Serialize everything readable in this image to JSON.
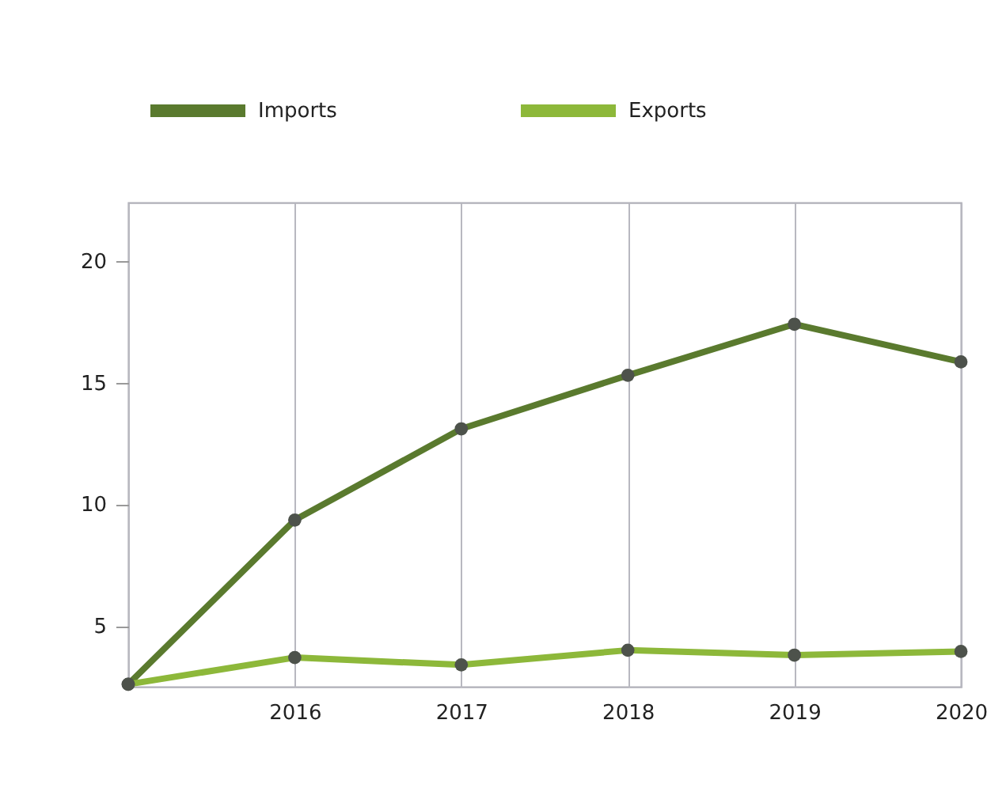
{
  "chart_data": {
    "type": "line",
    "categories": [
      null,
      "2016",
      "2017",
      "2018",
      "2019",
      "2020"
    ],
    "series": [
      {
        "name": "Imports",
        "color": "#5a7a2e",
        "values": [
          2.6,
          9.35,
          13.1,
          15.3,
          17.4,
          15.85
        ]
      },
      {
        "name": "Exports",
        "color": "#8db83a",
        "values": [
          2.6,
          3.7,
          3.4,
          4.0,
          3.8,
          3.95
        ]
      }
    ],
    "ylim": [
      2.5,
      22.4
    ],
    "yticks": [
      5,
      10,
      15,
      20
    ],
    "grid": "x",
    "legend": "top left",
    "marker": "circle",
    "line_style": "solid"
  }
}
